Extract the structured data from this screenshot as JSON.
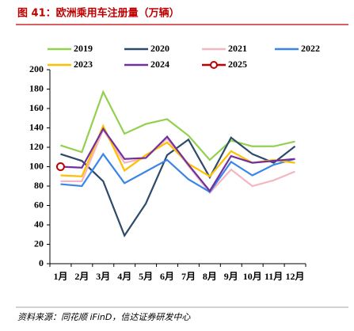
{
  "chart_data": {
    "type": "line",
    "title": "图 41：欧洲乘用车注册量（万辆）",
    "source": "资料来源：同花顺 iFinD，信达证券研发中心",
    "categories": [
      "1月",
      "2月",
      "3月",
      "4月",
      "5月",
      "6月",
      "7月",
      "8月",
      "9月",
      "10月",
      "11月",
      "12月"
    ],
    "ylim": [
      0,
      200
    ],
    "yticks": [
      0,
      20,
      40,
      60,
      80,
      100,
      120,
      140,
      160,
      180,
      200
    ],
    "series": [
      {
        "name": "2019",
        "color": "#92d050",
        "values": [
          122,
          115,
          177,
          134,
          144,
          149,
          132,
          107,
          127,
          121,
          121,
          126
        ]
      },
      {
        "name": "2020",
        "color": "#2e4a6b",
        "values": [
          113,
          106,
          85,
          29,
          62,
          112,
          128,
          89,
          130,
          113,
          104,
          121
        ]
      },
      {
        "name": "2021",
        "color": "#f4b6c2",
        "values": [
          85,
          85,
          138,
          104,
          109,
          129,
          101,
          73,
          97,
          80,
          86,
          95
        ]
      },
      {
        "name": "2022",
        "color": "#3a86e8",
        "values": [
          82,
          80,
          113,
          83,
          95,
          107,
          87,
          74,
          105,
          91,
          102,
          108
        ]
      },
      {
        "name": "2023",
        "color": "#ffc000",
        "values": [
          91,
          90,
          142,
          96,
          112,
          125,
          103,
          90,
          116,
          104,
          107,
          104
        ]
      },
      {
        "name": "2024",
        "color": "#7030a0",
        "values": [
          100,
          99,
          139,
          108,
          109,
          131,
          102,
          75,
          111,
          104,
          106,
          108
        ]
      },
      {
        "name": "2025",
        "color": "#c00000",
        "marker": true,
        "values": [
          100,
          null,
          null,
          null,
          null,
          null,
          null,
          null,
          null,
          null,
          null,
          null
        ]
      }
    ]
  }
}
